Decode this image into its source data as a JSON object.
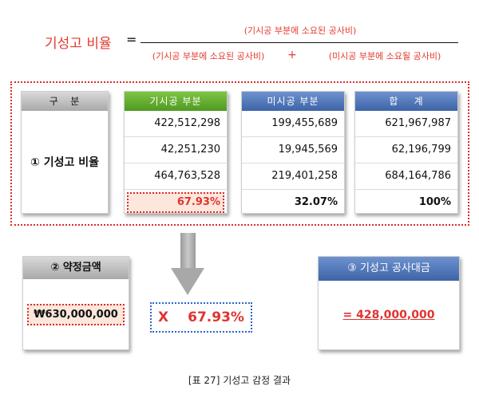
{
  "formula": {
    "lhs": "기성고 비율",
    "equals": "=",
    "numerator": "(기시공 부분에 소요된 공사비)",
    "denominator_left": "(기시공 부분에 소요된 공사비)",
    "plus": "+",
    "denominator_right": "(미시공 부분에 소요될 공사비)"
  },
  "table": {
    "label_header": "구   분",
    "row_label": "① 기성고 비율",
    "columns": [
      {
        "header": "기시공 부분",
        "values": [
          "422,512,298",
          "42,251,230",
          "464,763,528"
        ],
        "result": "67.93%"
      },
      {
        "header": "미시공 부분",
        "values": [
          "199,455,689",
          "19,945,569",
          "219,401,258"
        ],
        "result": "32.07%"
      },
      {
        "header": "합    계",
        "values": [
          "621,967,987",
          "62,196,799",
          "684,164,786"
        ],
        "result": "100%"
      }
    ]
  },
  "contract": {
    "header": "② 약정금액",
    "value": "₩630,000,000"
  },
  "multiply": {
    "symbol": "X",
    "value": "67.93%"
  },
  "result": {
    "header": "③ 기성고 공사대금",
    "value": "= 428,000,000"
  },
  "caption": "[표 27] 기성고 감정 결과",
  "colors": {
    "accent_red": "#e0342f",
    "green_header": "#5ea92c",
    "blue_header": "#4a70b5",
    "gray_header": "#bdbdbd"
  }
}
